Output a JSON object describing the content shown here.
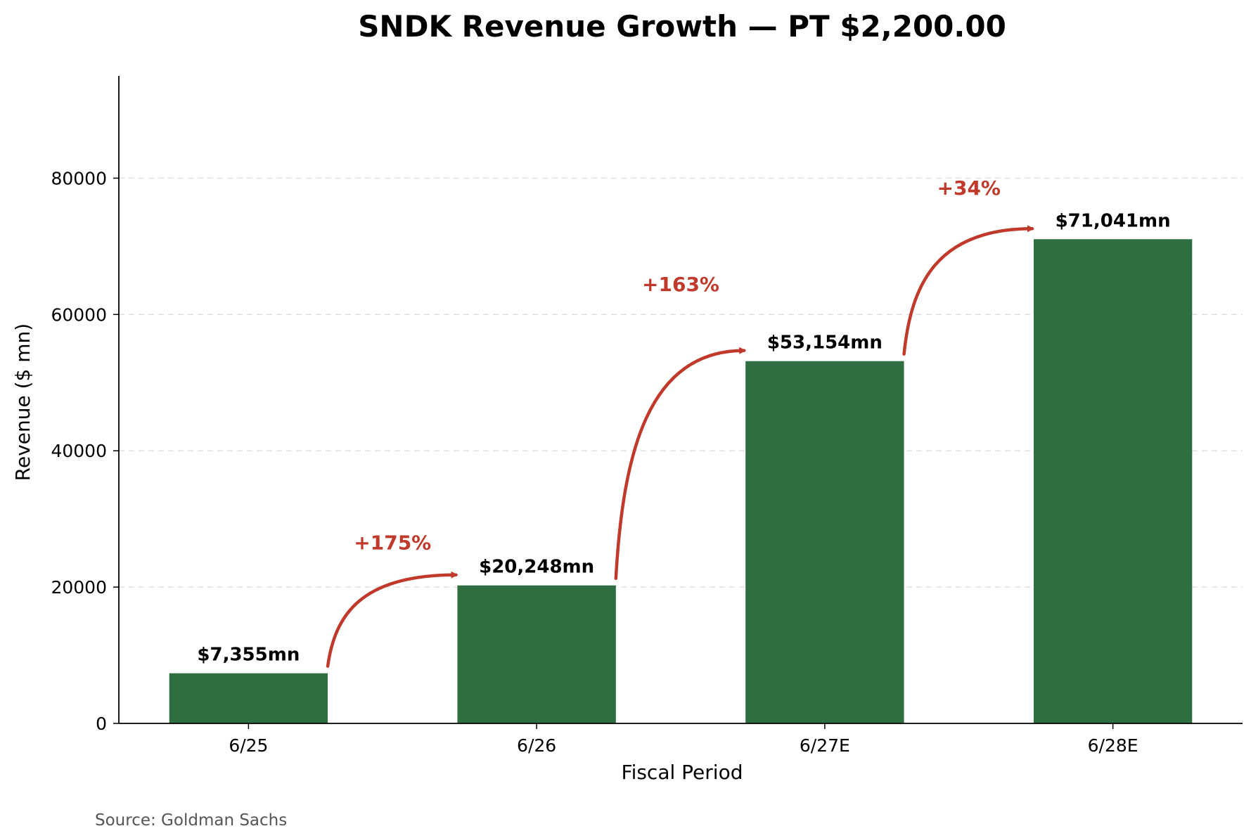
{
  "chart_data": {
    "type": "bar",
    "title": "SNDK Revenue Growth — PT $2,200.00",
    "xlabel": "Fiscal Period",
    "ylabel": "Revenue ($ mn)",
    "ylim": [
      0,
      95000
    ],
    "yticks": [
      0,
      20000,
      40000,
      60000,
      80000
    ],
    "categories": [
      "6/25",
      "6/26",
      "6/27E",
      "6/28E"
    ],
    "values": [
      7355,
      20248,
      53154,
      71041
    ],
    "value_labels": [
      "$7,355mn",
      "$20,248mn",
      "$53,154mn",
      "$71,041mn"
    ],
    "growth_labels": [
      "+175%",
      "+163%",
      "+34%"
    ],
    "grid": "horizontal dashed",
    "source": "Source: Goldman Sachs",
    "colors": {
      "bar": "#2e6e41",
      "arrow": "#c0392b",
      "grid": "#dddddd"
    }
  }
}
